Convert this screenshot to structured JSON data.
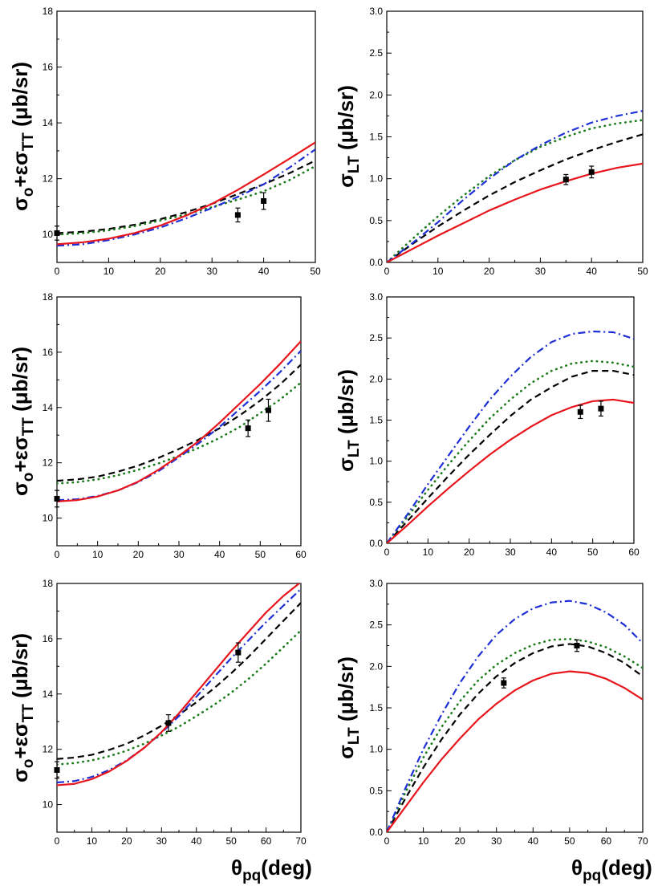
{
  "colors": {
    "black_dash": "#000000",
    "green_dot": "#1a7a1a",
    "blue_dashdot": "#1f2fd6",
    "red_solid": "#e8141b",
    "data_marker": "#000000"
  },
  "chart_data": [
    {
      "type": "line",
      "name": "panel-top-left",
      "ylabel": {
        "main": "σ",
        "sub1": "o",
        "mid": "+εσ",
        "sub2": "TT",
        "unit": " (μb/sr)"
      },
      "xlabel": null,
      "xlim": [
        0,
        50
      ],
      "ylim": [
        9,
        18
      ],
      "x_ticks": [
        0,
        10,
        20,
        30,
        40,
        50
      ],
      "y_ticks": [
        10,
        12,
        14,
        16,
        18
      ],
      "series": [
        {
          "name": "dash",
          "style": "dash",
          "x": [
            0,
            5,
            10,
            15,
            20,
            25,
            30,
            35,
            40,
            45,
            50
          ],
          "y": [
            10.05,
            10.1,
            10.2,
            10.35,
            10.55,
            10.8,
            11.1,
            11.45,
            11.8,
            12.2,
            12.65
          ]
        },
        {
          "name": "dot",
          "style": "dot",
          "x": [
            0,
            5,
            10,
            15,
            20,
            25,
            30,
            35,
            40,
            45,
            50
          ],
          "y": [
            10.0,
            10.05,
            10.15,
            10.3,
            10.5,
            10.72,
            10.98,
            11.25,
            11.55,
            11.95,
            12.45
          ]
        },
        {
          "name": "dashdot",
          "style": "dashdot",
          "x": [
            0,
            5,
            10,
            15,
            20,
            25,
            30,
            35,
            40,
            45,
            50
          ],
          "y": [
            9.6,
            9.65,
            9.8,
            10.0,
            10.25,
            10.58,
            10.95,
            11.35,
            11.8,
            12.4,
            13.05
          ]
        },
        {
          "name": "solid",
          "style": "solid",
          "x": [
            0,
            5,
            10,
            15,
            20,
            25,
            30,
            35,
            40,
            45,
            50
          ],
          "y": [
            9.65,
            9.72,
            9.85,
            10.05,
            10.32,
            10.68,
            11.1,
            11.6,
            12.15,
            12.72,
            13.3
          ]
        }
      ],
      "points": [
        {
          "x": 0,
          "y": 10.05,
          "err": 0.25
        },
        {
          "x": 35,
          "y": 10.7,
          "err": 0.25
        },
        {
          "x": 40,
          "y": 11.2,
          "err": 0.3
        }
      ]
    },
    {
      "type": "line",
      "name": "panel-top-right",
      "ylabel": {
        "main": "σ",
        "sub1": "LT",
        "mid": "",
        "sub2": "",
        "unit": " (μb/sr)"
      },
      "xlabel": null,
      "xlim": [
        0,
        50
      ],
      "ylim": [
        0,
        3
      ],
      "x_ticks": [
        0,
        10,
        20,
        30,
        40,
        50
      ],
      "y_ticks": [
        "0.0",
        "0.5",
        "1.0",
        "1.5",
        "2.0",
        "2.5",
        "3.0"
      ],
      "series": [
        {
          "name": "dash",
          "style": "dash",
          "x": [
            0,
            5,
            10,
            15,
            20,
            25,
            30,
            35,
            40,
            45,
            50
          ],
          "y": [
            0,
            0.22,
            0.43,
            0.62,
            0.8,
            0.96,
            1.1,
            1.23,
            1.34,
            1.44,
            1.53
          ]
        },
        {
          "name": "dot",
          "style": "dot",
          "x": [
            0,
            5,
            10,
            15,
            20,
            25,
            30,
            35,
            40,
            45,
            50
          ],
          "y": [
            0,
            0.28,
            0.55,
            0.8,
            1.03,
            1.22,
            1.38,
            1.5,
            1.6,
            1.66,
            1.7
          ]
        },
        {
          "name": "dashdot",
          "style": "dashdot",
          "x": [
            0,
            5,
            10,
            15,
            20,
            25,
            30,
            35,
            40,
            45,
            50
          ],
          "y": [
            0,
            0.23,
            0.48,
            0.75,
            1.0,
            1.22,
            1.4,
            1.55,
            1.67,
            1.75,
            1.81
          ]
        },
        {
          "name": "solid",
          "style": "solid",
          "x": [
            0,
            5,
            10,
            15,
            20,
            25,
            30,
            35,
            40,
            45,
            50
          ],
          "y": [
            0,
            0.16,
            0.32,
            0.47,
            0.62,
            0.75,
            0.87,
            0.97,
            1.06,
            1.13,
            1.18
          ]
        }
      ],
      "points": [
        {
          "x": 35,
          "y": 0.99,
          "err": 0.06
        },
        {
          "x": 40,
          "y": 1.08,
          "err": 0.07
        }
      ]
    },
    {
      "type": "line",
      "name": "panel-middle-left",
      "ylabel": {
        "main": "σ",
        "sub1": "o",
        "mid": "+εσ",
        "sub2": "TT",
        "unit": " (μb/sr)"
      },
      "xlabel": null,
      "xlim": [
        0,
        60
      ],
      "ylim": [
        9,
        18
      ],
      "x_ticks": [
        0,
        10,
        20,
        30,
        40,
        50,
        60
      ],
      "y_ticks": [
        10,
        12,
        14,
        16,
        18
      ],
      "series": [
        {
          "name": "dash",
          "style": "dash",
          "x": [
            0,
            5,
            10,
            15,
            20,
            25,
            30,
            35,
            40,
            45,
            50,
            55,
            60
          ],
          "y": [
            11.35,
            11.4,
            11.5,
            11.68,
            11.9,
            12.18,
            12.5,
            12.85,
            13.25,
            13.72,
            14.25,
            14.85,
            15.55
          ]
        },
        {
          "name": "dot",
          "style": "dot",
          "x": [
            0,
            5,
            10,
            15,
            20,
            25,
            30,
            35,
            40,
            45,
            50,
            55,
            60
          ],
          "y": [
            11.25,
            11.3,
            11.4,
            11.55,
            11.75,
            11.98,
            12.25,
            12.55,
            12.9,
            13.3,
            13.8,
            14.3,
            14.9
          ]
        },
        {
          "name": "dashdot",
          "style": "dashdot",
          "x": [
            0,
            5,
            10,
            15,
            20,
            25,
            30,
            35,
            40,
            45,
            50,
            55,
            60
          ],
          "y": [
            10.65,
            10.68,
            10.8,
            11.0,
            11.3,
            11.7,
            12.2,
            12.72,
            13.3,
            13.95,
            14.6,
            15.3,
            16.05
          ]
        },
        {
          "name": "solid",
          "style": "solid",
          "x": [
            0,
            5,
            10,
            15,
            20,
            25,
            30,
            35,
            40,
            45,
            50,
            55,
            60
          ],
          "y": [
            10.6,
            10.65,
            10.78,
            11.0,
            11.32,
            11.75,
            12.25,
            12.8,
            13.45,
            14.15,
            14.85,
            15.6,
            16.4
          ]
        }
      ],
      "points": [
        {
          "x": 0,
          "y": 10.7,
          "err": 0.3
        },
        {
          "x": 47,
          "y": 13.25,
          "err": 0.3
        },
        {
          "x": 52,
          "y": 13.9,
          "err": 0.4
        }
      ]
    },
    {
      "type": "line",
      "name": "panel-middle-right",
      "ylabel": {
        "main": "σ",
        "sub1": "LT",
        "mid": "",
        "sub2": "",
        "unit": " (μb/sr)"
      },
      "xlabel": null,
      "xlim": [
        0,
        60
      ],
      "ylim": [
        0,
        3
      ],
      "x_ticks": [
        0,
        10,
        20,
        30,
        40,
        50,
        60
      ],
      "y_ticks": [
        "0.0",
        "0.5",
        "1.0",
        "1.5",
        "2.0",
        "2.5",
        "3.0"
      ],
      "series": [
        {
          "name": "dash",
          "style": "dash",
          "x": [
            0,
            5,
            10,
            15,
            20,
            25,
            30,
            35,
            40,
            45,
            50,
            55,
            60
          ],
          "y": [
            0,
            0.27,
            0.55,
            0.82,
            1.08,
            1.32,
            1.55,
            1.75,
            1.9,
            2.03,
            2.1,
            2.1,
            2.05
          ]
        },
        {
          "name": "dot",
          "style": "dot",
          "x": [
            0,
            5,
            10,
            15,
            20,
            25,
            30,
            35,
            40,
            45,
            50,
            55,
            60
          ],
          "y": [
            0,
            0.32,
            0.65,
            0.96,
            1.25,
            1.52,
            1.75,
            1.95,
            2.1,
            2.19,
            2.22,
            2.2,
            2.15
          ]
        },
        {
          "name": "dashdot",
          "style": "dashdot",
          "x": [
            0,
            5,
            10,
            15,
            20,
            25,
            30,
            35,
            40,
            45,
            50,
            55,
            60
          ],
          "y": [
            0,
            0.35,
            0.72,
            1.07,
            1.42,
            1.75,
            2.03,
            2.27,
            2.45,
            2.55,
            2.58,
            2.57,
            2.49
          ]
        },
        {
          "name": "solid",
          "style": "solid",
          "x": [
            0,
            5,
            10,
            15,
            20,
            25,
            30,
            35,
            40,
            45,
            50,
            55,
            60
          ],
          "y": [
            0,
            0.22,
            0.45,
            0.67,
            0.88,
            1.08,
            1.26,
            1.42,
            1.56,
            1.66,
            1.73,
            1.75,
            1.71
          ]
        }
      ],
      "points": [
        {
          "x": 47,
          "y": 1.6,
          "err": 0.08
        },
        {
          "x": 52,
          "y": 1.64,
          "err": 0.09
        }
      ]
    },
    {
      "type": "line",
      "name": "panel-bottom-left",
      "ylabel": {
        "main": "σ",
        "sub1": "o",
        "mid": "+εσ",
        "sub2": "TT",
        "unit": " (μb/sr)"
      },
      "xlabel": {
        "main": "θ",
        "sub": "pq",
        "unit": "(deg)"
      },
      "xlim": [
        0,
        70
      ],
      "ylim": [
        9,
        18
      ],
      "x_ticks": [
        0,
        10,
        20,
        30,
        40,
        50,
        60,
        70
      ],
      "y_ticks": [
        10,
        12,
        14,
        16,
        18
      ],
      "series": [
        {
          "name": "dash",
          "style": "dash",
          "x": [
            0,
            5,
            10,
            15,
            20,
            25,
            30,
            35,
            40,
            45,
            50,
            55,
            60,
            65,
            70
          ],
          "y": [
            11.65,
            11.7,
            11.8,
            11.98,
            12.2,
            12.5,
            12.85,
            13.25,
            13.7,
            14.2,
            14.75,
            15.35,
            16.0,
            16.65,
            17.3
          ]
        },
        {
          "name": "dot",
          "style": "dot",
          "x": [
            0,
            5,
            10,
            15,
            20,
            25,
            30,
            35,
            40,
            45,
            50,
            55,
            60,
            65,
            70
          ],
          "y": [
            11.45,
            11.5,
            11.6,
            11.75,
            11.95,
            12.2,
            12.5,
            12.82,
            13.2,
            13.6,
            14.05,
            14.55,
            15.1,
            15.7,
            16.3
          ]
        },
        {
          "name": "dashdot",
          "style": "dashdot",
          "x": [
            0,
            5,
            10,
            15,
            20,
            25,
            30,
            35,
            40,
            45,
            50,
            55,
            60,
            65,
            70
          ],
          "y": [
            10.8,
            10.85,
            11.0,
            11.25,
            11.6,
            12.05,
            12.6,
            13.2,
            13.9,
            14.6,
            15.3,
            15.95,
            16.6,
            17.2,
            17.8
          ]
        },
        {
          "name": "solid",
          "style": "solid",
          "x": [
            0,
            5,
            10,
            15,
            20,
            25,
            30,
            35,
            40,
            45,
            50,
            55,
            60,
            65,
            70
          ],
          "y": [
            10.7,
            10.75,
            10.92,
            11.2,
            11.58,
            12.05,
            12.62,
            13.3,
            14.05,
            14.8,
            15.55,
            16.25,
            16.95,
            17.55,
            18.05
          ]
        }
      ],
      "points": [
        {
          "x": 0,
          "y": 11.25,
          "err": 0.3
        },
        {
          "x": 32,
          "y": 12.95,
          "err": 0.3
        },
        {
          "x": 52,
          "y": 15.5,
          "err": 0.35
        }
      ]
    },
    {
      "type": "line",
      "name": "panel-bottom-right",
      "ylabel": {
        "main": "σ",
        "sub1": "LT",
        "mid": "",
        "sub2": "",
        "unit": " (μb/sr)"
      },
      "xlabel": {
        "main": "θ",
        "sub": "pq",
        "unit": "(deg)"
      },
      "xlim": [
        0,
        70
      ],
      "ylim": [
        0,
        3
      ],
      "x_ticks": [
        0,
        10,
        20,
        30,
        40,
        50,
        60,
        70
      ],
      "y_ticks": [
        "0.0",
        "0.5",
        "1.0",
        "1.5",
        "2.0",
        "2.5",
        "3.0"
      ],
      "series": [
        {
          "name": "dash",
          "style": "dash",
          "x": [
            0,
            5,
            10,
            15,
            20,
            25,
            30,
            35,
            40,
            45,
            50,
            55,
            60,
            65,
            70
          ],
          "y": [
            0,
            0.4,
            0.78,
            1.12,
            1.42,
            1.67,
            1.88,
            2.04,
            2.16,
            2.24,
            2.27,
            2.24,
            2.16,
            2.04,
            1.88
          ]
        },
        {
          "name": "dot",
          "style": "dot",
          "x": [
            0,
            5,
            10,
            15,
            20,
            25,
            30,
            35,
            40,
            45,
            50,
            55,
            60,
            65,
            70
          ],
          "y": [
            0,
            0.47,
            0.9,
            1.27,
            1.58,
            1.83,
            2.02,
            2.16,
            2.26,
            2.32,
            2.33,
            2.3,
            2.23,
            2.12,
            1.98
          ]
        },
        {
          "name": "dashdot",
          "style": "dashdot",
          "x": [
            0,
            5,
            10,
            15,
            20,
            25,
            30,
            35,
            40,
            45,
            50,
            55,
            60,
            65,
            70
          ],
          "y": [
            0,
            0.52,
            1.0,
            1.42,
            1.8,
            2.12,
            2.38,
            2.57,
            2.7,
            2.77,
            2.79,
            2.75,
            2.65,
            2.5,
            2.28
          ]
        },
        {
          "name": "solid",
          "style": "solid",
          "x": [
            0,
            5,
            10,
            15,
            20,
            25,
            30,
            35,
            40,
            45,
            50,
            55,
            60,
            65,
            70
          ],
          "y": [
            0,
            0.3,
            0.6,
            0.88,
            1.13,
            1.36,
            1.55,
            1.71,
            1.83,
            1.91,
            1.94,
            1.92,
            1.85,
            1.74,
            1.6
          ]
        }
      ],
      "points": [
        {
          "x": 32,
          "y": 1.8,
          "err": 0.06
        },
        {
          "x": 52,
          "y": 2.25,
          "err": 0.07
        }
      ]
    }
  ]
}
